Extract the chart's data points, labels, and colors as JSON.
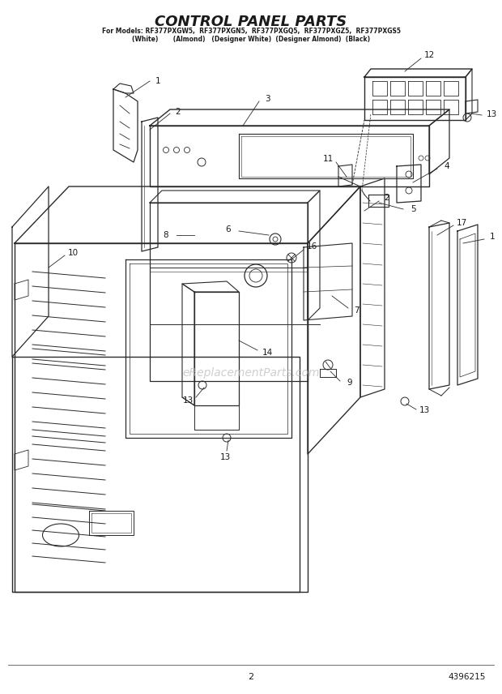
{
  "title": "CONTROL PANEL PARTS",
  "subtitle_line1": "For Models: RF377PXGW5,  RF377PXGN5,  RF377PXGQ5,  RF377PXGZ5,  RF377PXGS5",
  "subtitle_line2": "(White)       (Almond)   (Designer White)  (Designer Almond)  (Black)",
  "page_number": "2",
  "part_number": "4396215",
  "watermark": "eReplacementParts.com",
  "bg_color": "#ffffff",
  "lc": "#2a2a2a",
  "text_color": "#1a1a1a",
  "wm_color": "#bbbbbb"
}
